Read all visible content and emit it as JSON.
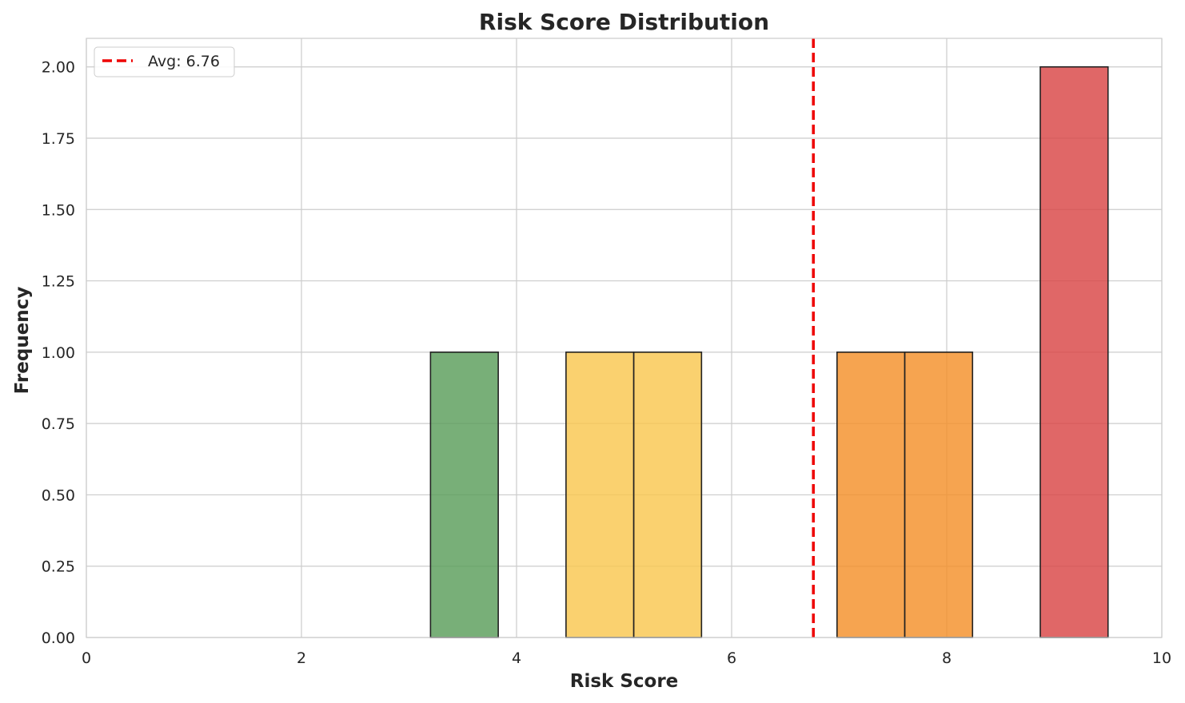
{
  "chart_data": {
    "type": "bar",
    "title": "Risk Score Distribution",
    "xlabel": "Risk Score",
    "ylabel": "Frequency",
    "xlim": [
      0,
      10
    ],
    "ylim": [
      0,
      2.1
    ],
    "x_ticks": [
      "0",
      "2",
      "4",
      "6",
      "8",
      "10"
    ],
    "y_ticks": [
      "0.00",
      "0.25",
      "0.50",
      "0.75",
      "1.00",
      "1.25",
      "1.50",
      "1.75",
      "2.00"
    ],
    "grid": true,
    "legend_position": "top-left",
    "bins": [
      {
        "start": 3.2,
        "end": 3.83,
        "count": 1,
        "color": "#5a9e5a"
      },
      {
        "start": 4.46,
        "end": 5.09,
        "count": 1,
        "color": "#f9c74f"
      },
      {
        "start": 5.09,
        "end": 5.72,
        "count": 1,
        "color": "#f9c74f"
      },
      {
        "start": 6.98,
        "end": 7.61,
        "count": 1,
        "color": "#f4902a"
      },
      {
        "start": 7.61,
        "end": 8.24,
        "count": 1,
        "color": "#f4902a"
      },
      {
        "start": 8.87,
        "end": 9.5,
        "count": 2,
        "color": "#d94545"
      }
    ],
    "average": {
      "value": 6.76,
      "label": "Avg: 6.76",
      "color": "#ee0000"
    }
  }
}
